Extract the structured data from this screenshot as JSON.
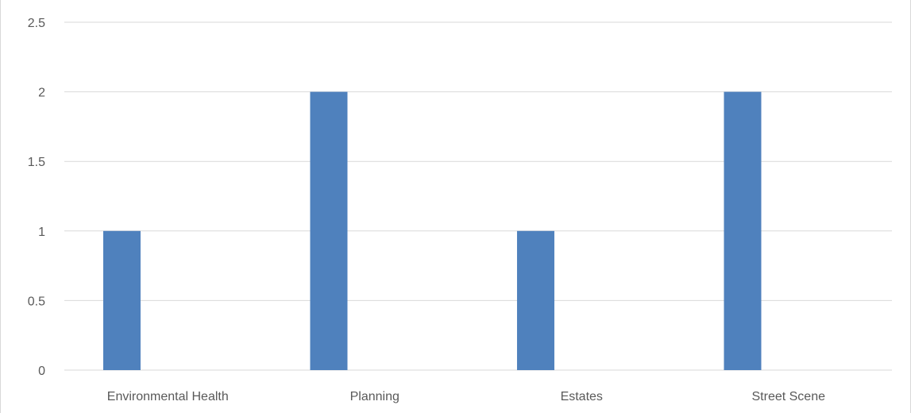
{
  "chart_data": {
    "type": "bar",
    "title": "",
    "xlabel": "",
    "ylabel": "",
    "categories": [
      "Environmental Health",
      "Planning",
      "Estates",
      "Street Scene"
    ],
    "values": [
      1,
      2,
      1,
      2
    ],
    "ylim": [
      0,
      2.5
    ],
    "yticks": [
      "0",
      "0.5",
      "1",
      "1.5",
      "2",
      "2.5"
    ],
    "grid": true,
    "legend": "none",
    "bar_color": "#4f81bd",
    "grid_color": "#d9d9d9",
    "label_color": "#595959"
  }
}
